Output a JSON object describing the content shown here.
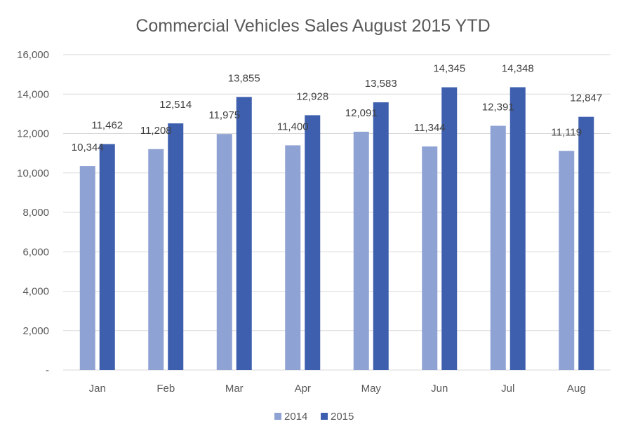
{
  "chart_data": {
    "type": "bar",
    "title": "Commercial Vehicles Sales August 2015 YTD",
    "xlabel": "",
    "ylabel": "",
    "categories": [
      "Jan",
      "Feb",
      "Mar",
      "Apr",
      "May",
      "Jun",
      "Jul",
      "Aug"
    ],
    "series": [
      {
        "name": "2014",
        "color": "#8FA2D4",
        "values": [
          10344,
          11208,
          11975,
          11400,
          12091,
          11344,
          12391,
          11119
        ]
      },
      {
        "name": "2015",
        "color": "#3D5FAE",
        "values": [
          11462,
          12514,
          13855,
          12928,
          13583,
          14345,
          14348,
          12847
        ]
      }
    ],
    "ylim": [
      0,
      16000
    ],
    "y_ticks": [
      0,
      2000,
      4000,
      6000,
      8000,
      10000,
      12000,
      14000,
      16000
    ],
    "y_tick_labels": [
      "-",
      "2,000",
      "4,000",
      "6,000",
      "8,000",
      "10,000",
      "12,000",
      "14,000",
      "16,000"
    ],
    "data_labels": [
      [
        "10,344",
        "11,208",
        "11,975",
        "11,400",
        "12,091",
        "11,344",
        "12,391",
        "11,119"
      ],
      [
        "11,462",
        "12,514",
        "13,855",
        "12,928",
        "13,583",
        "14,345",
        "14,348",
        "12,847"
      ]
    ],
    "grid": true,
    "legend_position": "bottom",
    "gridline_color": "#D9D9D9"
  }
}
